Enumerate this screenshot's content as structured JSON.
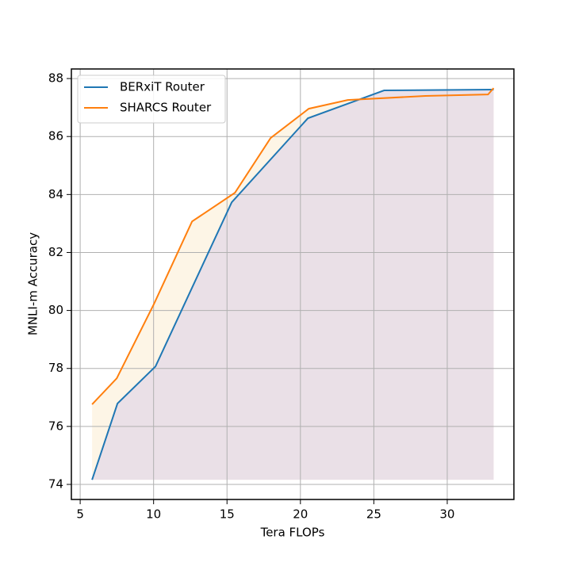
{
  "chart_data": {
    "type": "line",
    "xlabel": "Tera FLOPs",
    "ylabel": "MNLI-m Accuracy",
    "xlim": [
      4.4,
      34.54
    ],
    "ylim": [
      73.48,
      88.33
    ],
    "xticks": [
      5,
      10,
      15,
      20,
      25,
      30
    ],
    "yticks": [
      74,
      76,
      78,
      80,
      82,
      84,
      86,
      88
    ],
    "grid": true,
    "legend": "upper left",
    "series": [
      {
        "name": "BERxiT Router",
        "color": "#1f77b4",
        "fill_color": "#e6dce6",
        "x": [
          5.81,
          7.54,
          10.13,
          15.32,
          20.51,
          25.7,
          33.16
        ],
        "values": [
          74.16,
          76.79,
          78.07,
          83.73,
          86.63,
          87.59,
          87.62
        ]
      },
      {
        "name": "SHARCS Router",
        "color": "#ff7f0e",
        "fill_color": "#fdf3e2",
        "x": [
          5.81,
          7.49,
          10.03,
          12.62,
          15.54,
          17.97,
          20.57,
          23.22,
          28.51,
          32.78,
          33.16
        ],
        "values": [
          76.76,
          77.66,
          80.23,
          83.07,
          84.06,
          85.95,
          86.96,
          87.26,
          87.4,
          87.45,
          87.67
        ]
      }
    ]
  }
}
